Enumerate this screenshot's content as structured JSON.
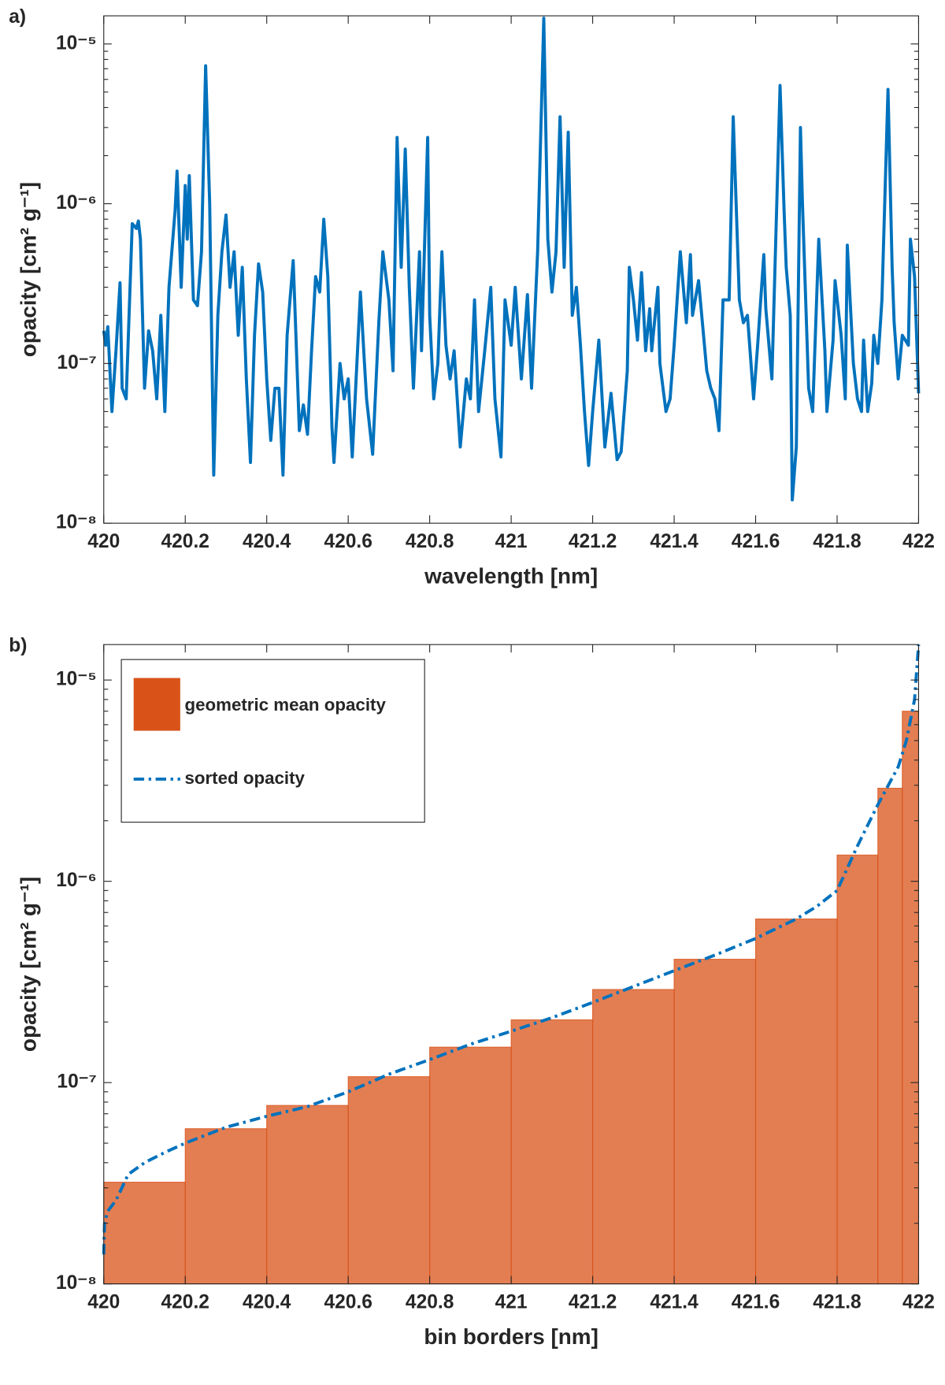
{
  "chart_data": [
    {
      "type": "line",
      "panel_label": "a)",
      "xlabel": "wavelength [nm]",
      "ylabel": "opacity [cm² g⁻¹]",
      "log_y": true,
      "color": "#0072bd",
      "xlim": [
        420,
        422
      ],
      "xticks": [
        420,
        420.2,
        420.4,
        420.6,
        420.8,
        421,
        421.2,
        421.4,
        421.6,
        421.8,
        422
      ],
      "ylim": [
        1e-08,
        1.5e-05
      ],
      "yticks": [
        {
          "value": 1e-08,
          "label": "10⁻⁸"
        },
        {
          "value": 1e-07,
          "label": "10⁻⁷"
        },
        {
          "value": 1e-06,
          "label": "10⁻⁶"
        },
        {
          "value": 1e-05,
          "label": "10⁻⁵"
        }
      ],
      "x": [
        420,
        420.005,
        420.01,
        420.02,
        420.03,
        420.04,
        420.045,
        420.055,
        420.07,
        420.08,
        420.085,
        420.09,
        420.1,
        420.11,
        420.12,
        420.13,
        420.14,
        420.15,
        420.16,
        420.175,
        420.18,
        420.19,
        420.2,
        420.205,
        420.21,
        420.22,
        420.23,
        420.24,
        420.25,
        420.26,
        420.27,
        420.28,
        420.29,
        420.3,
        420.31,
        420.32,
        420.33,
        420.34,
        420.35,
        420.36,
        420.37,
        420.38,
        420.39,
        420.4,
        420.41,
        420.42,
        420.43,
        420.44,
        420.45,
        420.465,
        420.47,
        420.48,
        420.49,
        420.5,
        420.51,
        420.52,
        420.53,
        420.54,
        420.55,
        420.56,
        420.565,
        420.58,
        420.59,
        420.6,
        420.61,
        420.63,
        420.64,
        420.645,
        420.66,
        420.675,
        420.685,
        420.7,
        420.71,
        420.72,
        420.73,
        420.74,
        420.75,
        420.76,
        420.775,
        420.78,
        420.795,
        420.8,
        420.81,
        420.82,
        420.83,
        420.84,
        420.85,
        420.86,
        420.875,
        420.89,
        420.9,
        420.91,
        420.92,
        420.935,
        420.95,
        420.96,
        420.975,
        420.985,
        421,
        421.01,
        421.025,
        421.04,
        421.05,
        421.065,
        421.08,
        421.09,
        421.1,
        421.11,
        421.12,
        421.13,
        421.14,
        421.15,
        421.16,
        421.17,
        421.18,
        421.19,
        421.2,
        421.215,
        421.23,
        421.245,
        421.26,
        421.27,
        421.285,
        421.29,
        421.3,
        421.31,
        421.32,
        421.33,
        421.34,
        421.345,
        421.36,
        421.365,
        421.38,
        421.39,
        421.4,
        421.415,
        421.43,
        421.44,
        421.445,
        421.46,
        421.48,
        421.49,
        421.5,
        421.51,
        421.52,
        421.535,
        421.545,
        421.56,
        421.57,
        421.58,
        421.595,
        421.605,
        421.62,
        421.625,
        421.64,
        421.66,
        421.67,
        421.675,
        421.685,
        421.69,
        421.7,
        421.71,
        421.715,
        421.73,
        421.74,
        421.755,
        421.77,
        421.775,
        421.79,
        421.795,
        421.81,
        421.82,
        421.825,
        421.84,
        421.85,
        421.86,
        421.865,
        421.875,
        421.885,
        421.89,
        421.9,
        421.91,
        421.925,
        421.935,
        421.94,
        421.95,
        421.96,
        421.975,
        421.98,
        421.99,
        422
      ],
      "values": [
        1.6e-07,
        1.3e-07,
        1.7e-07,
        5e-08,
        1.2e-07,
        3.2e-07,
        7e-08,
        6e-08,
        7.5e-07,
        7e-07,
        7.8e-07,
        6e-07,
        7e-08,
        1.6e-07,
        1.2e-07,
        6e-08,
        2e-07,
        5e-08,
        3e-07,
        9e-07,
        1.6e-06,
        3e-07,
        1.3e-06,
        6e-07,
        1.5e-06,
        2.5e-07,
        2.3e-07,
        5e-07,
        7.3e-06,
        1e-06,
        2e-08,
        2e-07,
        5e-07,
        8.5e-07,
        3e-07,
        5e-07,
        1.5e-07,
        4e-07,
        8e-08,
        2.4e-08,
        1.5e-07,
        4.2e-07,
        2.8e-07,
        8e-08,
        3.3e-08,
        7e-08,
        7e-08,
        2e-08,
        1.5e-07,
        4.4e-07,
        2e-07,
        3.8e-08,
        5.5e-08,
        3.6e-08,
        1.2e-07,
        3.5e-07,
        2.8e-07,
        8e-07,
        3.5e-07,
        4e-08,
        2.4e-08,
        1e-07,
        6e-08,
        8e-08,
        2.6e-08,
        2.8e-07,
        1e-07,
        6e-08,
        2.7e-08,
        1.8e-07,
        5e-07,
        2.5e-07,
        9e-08,
        2.6e-06,
        4e-07,
        2.2e-06,
        3e-07,
        7e-08,
        5e-07,
        1.2e-07,
        2.6e-06,
        2e-07,
        6e-08,
        1e-07,
        5e-07,
        1.3e-07,
        8e-08,
        1.2e-07,
        3e-08,
        8e-08,
        6e-08,
        2.5e-07,
        5e-08,
        1.2e-07,
        3e-07,
        6e-08,
        2.6e-08,
        2.5e-07,
        1.3e-07,
        3e-07,
        8e-08,
        2.7e-07,
        7e-08,
        5e-07,
        1.45e-05,
        6e-07,
        2.8e-07,
        5e-07,
        3.5e-06,
        4e-07,
        2.8e-06,
        2e-07,
        3e-07,
        1.3e-07,
        5e-08,
        2.3e-08,
        5e-08,
        1.4e-07,
        3e-08,
        6.5e-08,
        2.5e-08,
        2.8e-08,
        9e-08,
        4e-07,
        2.5e-07,
        1.4e-07,
        3.7e-07,
        1.2e-07,
        2.2e-07,
        1.2e-07,
        3e-07,
        1e-07,
        5e-08,
        6e-08,
        1.3e-07,
        5e-07,
        1.8e-07,
        4.8e-07,
        2e-07,
        3.3e-07,
        9e-08,
        7e-08,
        6e-08,
        3.8e-08,
        2.5e-07,
        2.5e-07,
        3.5e-06,
        2.5e-07,
        1.8e-07,
        2e-07,
        6e-08,
        1.3e-07,
        4.8e-07,
        2.2e-07,
        8e-08,
        5.5e-06,
        9e-07,
        4e-07,
        2e-07,
        1.4e-08,
        3e-08,
        3e-06,
        1e-06,
        7e-08,
        5e-08,
        6e-07,
        1.2e-07,
        5e-08,
        1.4e-07,
        3.3e-07,
        1.5e-07,
        6e-08,
        5.5e-07,
        1e-07,
        6e-08,
        5e-08,
        1.4e-07,
        5e-08,
        7.5e-08,
        1.5e-07,
        1e-07,
        2.5e-07,
        5.2e-06,
        4e-07,
        1.8e-07,
        8e-08,
        1.5e-07,
        1.3e-07,
        6e-07,
        3.5e-07,
        6.5e-08
      ]
    },
    {
      "type": "histogram",
      "panel_label": "b)",
      "xlabel": "bin borders [nm]",
      "ylabel": "opacity [cm² g⁻¹]",
      "log_y": true,
      "legend": "upper left",
      "xlim": [
        420,
        422
      ],
      "xticks": [
        420,
        420.2,
        420.4,
        420.6,
        420.8,
        421,
        421.2,
        421.4,
        421.6,
        421.8,
        422
      ],
      "ylim": [
        1e-08,
        1.5e-05
      ],
      "yticks": [
        {
          "value": 1e-08,
          "label": "10⁻⁸"
        },
        {
          "value": 1e-07,
          "label": "10⁻⁷"
        },
        {
          "value": 1e-06,
          "label": "10⁻⁶"
        },
        {
          "value": 1e-05,
          "label": "10⁻⁵"
        }
      ],
      "series": [
        {
          "name": "geometric mean opacity",
          "type": "histogram",
          "color": "#d95319",
          "bins": [
            420,
            420.2,
            420.4,
            420.6,
            420.8,
            421,
            421.2,
            421.4,
            421.6,
            421.8,
            421.9,
            421.96,
            422
          ],
          "values": [
            3.2e-08,
            5.9e-08,
            7.7e-08,
            1.07e-07,
            1.5e-07,
            2.05e-07,
            2.9e-07,
            4.1e-07,
            6.5e-07,
            1.35e-06,
            2.9e-06,
            7e-06
          ]
        },
        {
          "name": "sorted opacity",
          "type": "line",
          "color": "#0072bd",
          "x": [
            420,
            420.002,
            420.01,
            420.03,
            420.06,
            420.1,
            420.15,
            420.2,
            420.3,
            420.4,
            420.5,
            420.6,
            420.7,
            420.8,
            420.9,
            421,
            421.1,
            421.2,
            421.3,
            421.4,
            421.5,
            421.6,
            421.7,
            421.75,
            421.8,
            421.85,
            421.9,
            421.95,
            421.97,
            421.99,
            422
          ],
          "values": [
            1.4e-08,
            2e-08,
            2.3e-08,
            2.6e-08,
            3.5e-08,
            4e-08,
            4.5e-08,
            5e-08,
            6e-08,
            6.8e-08,
            7.6e-08,
            9e-08,
            1.1e-07,
            1.3e-07,
            1.55e-07,
            1.8e-07,
            2.1e-07,
            2.5e-07,
            3e-07,
            3.6e-07,
            4.3e-07,
            5.2e-07,
            6.5e-07,
            7.5e-07,
            9e-07,
            1.5e-06,
            2.4e-06,
            3.7e-06,
            5e-06,
            8e-06,
            1.5e-05
          ]
        }
      ]
    }
  ]
}
